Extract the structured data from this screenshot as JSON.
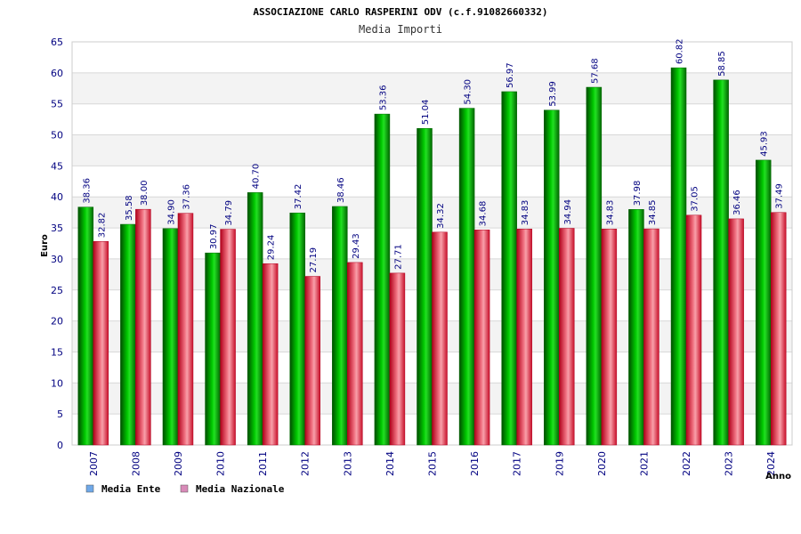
{
  "chart_data": {
    "type": "bar",
    "title": "ASSOCIAZIONE CARLO RASPERINI ODV (c.f.91082660332)",
    "subtitle": "Media Importi",
    "xlabel": "Anno",
    "ylabel": "Euro",
    "ylim": [
      0,
      65
    ],
    "yticks": [
      0,
      5,
      10,
      15,
      20,
      25,
      30,
      35,
      40,
      45,
      50,
      55,
      60,
      65
    ],
    "categories": [
      "2007",
      "2008",
      "2009",
      "2010",
      "2011",
      "2012",
      "2013",
      "2014",
      "2015",
      "2016",
      "2017",
      "2019",
      "2020",
      "2021",
      "2022",
      "2023",
      "2024"
    ],
    "series": [
      {
        "name": "Media Ente",
        "values": [
          38.36,
          35.58,
          34.9,
          30.97,
          40.7,
          37.42,
          38.46,
          53.36,
          51.04,
          54.3,
          56.97,
          53.99,
          57.68,
          37.98,
          60.82,
          58.85,
          45.93
        ],
        "labels": [
          "38.36",
          "35.58",
          "34.90",
          "30.97",
          "40.70",
          "37.42",
          "38.46",
          "53.36",
          "51.04",
          "54.30",
          "56.97",
          "53.99",
          "57.68",
          "37.98",
          "60.82",
          "58.85",
          "45.93"
        ],
        "color": "#00aa00",
        "legend_color": "#6fa8e8"
      },
      {
        "name": "Media Nazionale",
        "values": [
          32.82,
          38.0,
          37.36,
          34.79,
          29.24,
          27.19,
          29.43,
          27.71,
          34.32,
          34.68,
          34.83,
          34.94,
          34.83,
          34.85,
          37.05,
          36.46,
          37.49
        ],
        "labels": [
          "32.82",
          "38.00",
          "37.36",
          "34.79",
          "29.24",
          "27.19",
          "29.43",
          "27.71",
          "34.32",
          "34.68",
          "34.83",
          "34.94",
          "34.83",
          "34.85",
          "37.05",
          "36.46",
          "37.49"
        ],
        "color": "#e8303c",
        "legend_color": "#d88ab8"
      }
    ],
    "grid": true,
    "legend_position": "bottom-left"
  }
}
